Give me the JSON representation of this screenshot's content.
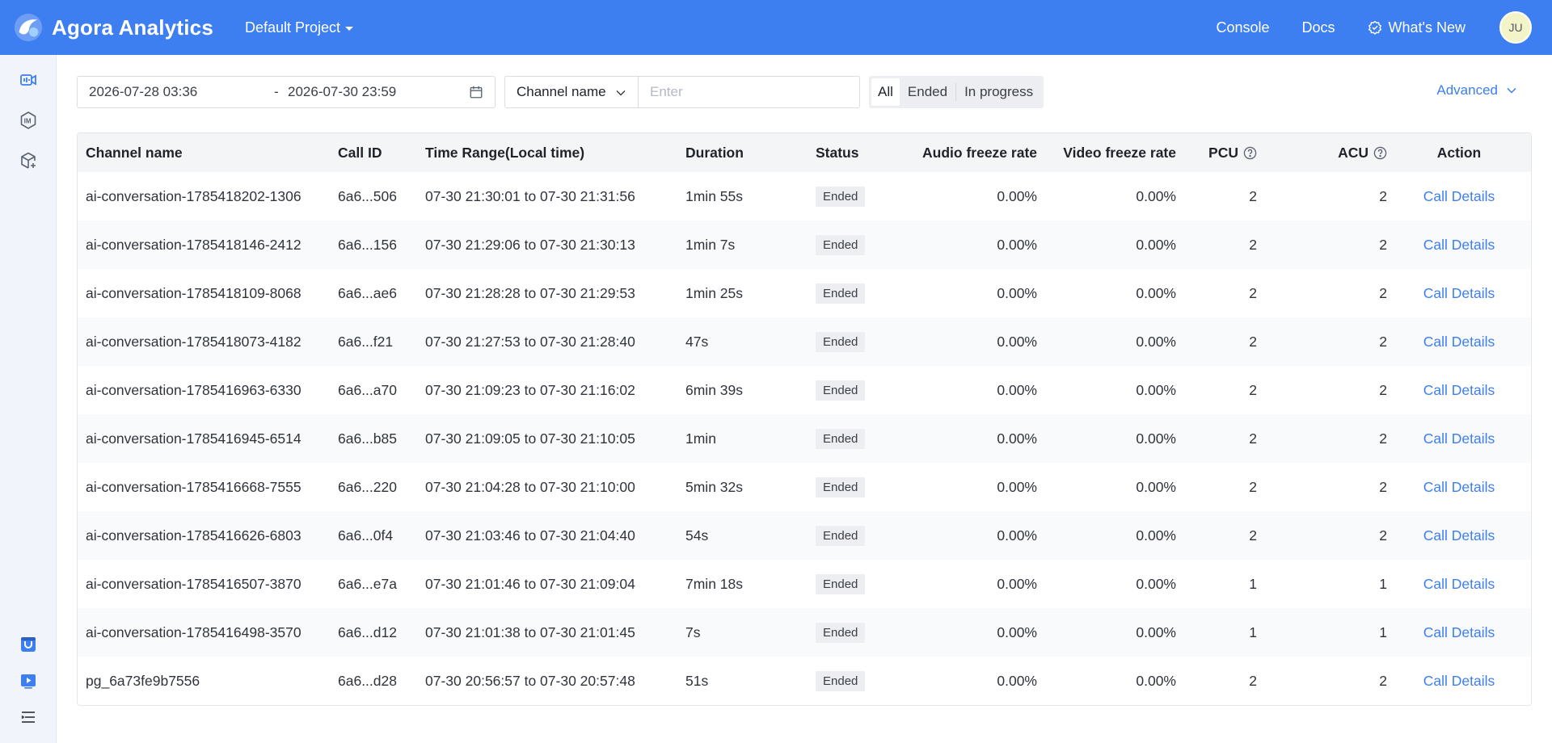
{
  "app": {
    "title": "Agora Analytics",
    "project": "Default Project"
  },
  "topnav": {
    "console": "Console",
    "docs": "Docs",
    "whats_new": "What's New",
    "avatar": "JU"
  },
  "sidebar": {
    "icons": [
      "video-call-icon",
      "im-chat-icon",
      "cube-add-icon",
      "store-icon",
      "media-player-icon",
      "menu-list-icon"
    ]
  },
  "filters": {
    "date_start": "2026-07-28 03:36",
    "date_separator": "-",
    "date_end": "2026-07-30 23:59",
    "field_select": "Channel name",
    "search_placeholder": "Enter",
    "status_tabs": [
      "All",
      "Ended",
      "In progress"
    ],
    "active_tab": "All",
    "advanced": "Advanced"
  },
  "table": {
    "headers": {
      "channel": "Channel name",
      "call_id": "Call ID",
      "time": "Time Range(Local time)",
      "duration": "Duration",
      "status": "Status",
      "audio": "Audio freeze rate",
      "video": "Video freeze rate",
      "pcu": "PCU",
      "acu": "ACU",
      "action": "Action"
    },
    "rows": [
      {
        "channel": "ai-conversation-1785418202-1306",
        "call_id": "6a6...506",
        "time": "07-30 21:30:01 to 07-30 21:31:56",
        "duration": "1min 55s",
        "status": "Ended",
        "audio": "0.00%",
        "video": "0.00%",
        "pcu": "2",
        "acu": "2",
        "action": "Call Details"
      },
      {
        "channel": "ai-conversation-1785418146-2412",
        "call_id": "6a6...156",
        "time": "07-30 21:29:06 to 07-30 21:30:13",
        "duration": "1min 7s",
        "status": "Ended",
        "audio": "0.00%",
        "video": "0.00%",
        "pcu": "2",
        "acu": "2",
        "action": "Call Details"
      },
      {
        "channel": "ai-conversation-1785418109-8068",
        "call_id": "6a6...ae6",
        "time": "07-30 21:28:28 to 07-30 21:29:53",
        "duration": "1min 25s",
        "status": "Ended",
        "audio": "0.00%",
        "video": "0.00%",
        "pcu": "2",
        "acu": "2",
        "action": "Call Details"
      },
      {
        "channel": "ai-conversation-1785418073-4182",
        "call_id": "6a6...f21",
        "time": "07-30 21:27:53 to 07-30 21:28:40",
        "duration": "47s",
        "status": "Ended",
        "audio": "0.00%",
        "video": "0.00%",
        "pcu": "2",
        "acu": "2",
        "action": "Call Details"
      },
      {
        "channel": "ai-conversation-1785416963-6330",
        "call_id": "6a6...a70",
        "time": "07-30 21:09:23 to 07-30 21:16:02",
        "duration": "6min 39s",
        "status": "Ended",
        "audio": "0.00%",
        "video": "0.00%",
        "pcu": "2",
        "acu": "2",
        "action": "Call Details"
      },
      {
        "channel": "ai-conversation-1785416945-6514",
        "call_id": "6a6...b85",
        "time": "07-30 21:09:05 to 07-30 21:10:05",
        "duration": "1min",
        "status": "Ended",
        "audio": "0.00%",
        "video": "0.00%",
        "pcu": "2",
        "acu": "2",
        "action": "Call Details"
      },
      {
        "channel": "ai-conversation-1785416668-7555",
        "call_id": "6a6...220",
        "time": "07-30 21:04:28 to 07-30 21:10:00",
        "duration": "5min 32s",
        "status": "Ended",
        "audio": "0.00%",
        "video": "0.00%",
        "pcu": "2",
        "acu": "2",
        "action": "Call Details"
      },
      {
        "channel": "ai-conversation-1785416626-6803",
        "call_id": "6a6...0f4",
        "time": "07-30 21:03:46 to 07-30 21:04:40",
        "duration": "54s",
        "status": "Ended",
        "audio": "0.00%",
        "video": "0.00%",
        "pcu": "2",
        "acu": "2",
        "action": "Call Details"
      },
      {
        "channel": "ai-conversation-1785416507-3870",
        "call_id": "6a6...e7a",
        "time": "07-30 21:01:46 to 07-30 21:09:04",
        "duration": "7min 18s",
        "status": "Ended",
        "audio": "0.00%",
        "video": "0.00%",
        "pcu": "1",
        "acu": "1",
        "action": "Call Details"
      },
      {
        "channel": "ai-conversation-1785416498-3570",
        "call_id": "6a6...d12",
        "time": "07-30 21:01:38 to 07-30 21:01:45",
        "duration": "7s",
        "status": "Ended",
        "audio": "0.00%",
        "video": "0.00%",
        "pcu": "1",
        "acu": "1",
        "action": "Call Details"
      },
      {
        "channel": "pg_6a73fe9b7556",
        "call_id": "6a6...d28",
        "time": "07-30 20:56:57 to 07-30 20:57:48",
        "duration": "51s",
        "status": "Ended",
        "audio": "0.00%",
        "video": "0.00%",
        "pcu": "2",
        "acu": "2",
        "action": "Call Details"
      }
    ]
  },
  "colors": {
    "brand": "#3d7ef0",
    "sidebar_bg": "#f1f5fb",
    "badge_bg": "#eceef1"
  }
}
